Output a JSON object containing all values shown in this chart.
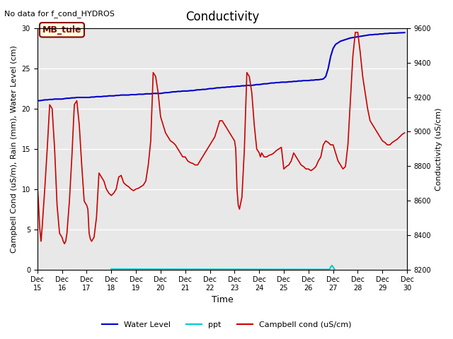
{
  "title": "Conductivity",
  "top_left_text": "No data for f_cond_HYDROS",
  "xlabel": "Time",
  "ylabel_left": "Campbell Cond (uS/m), Rain (mm), Water Level (cm)",
  "ylabel_right": "Conductivity (uS/cm)",
  "site_label": "MB_tule",
  "xlim": [
    15,
    30
  ],
  "ylim_left": [
    0,
    30
  ],
  "ylim_right": [
    8200,
    9600
  ],
  "xtick_labels": [
    "Dec 15",
    "Dec 16",
    "Dec 17",
    "Dec 18",
    "Dec 19",
    "Dec 20",
    "Dec 21",
    "Dec 22",
    "Dec 23",
    "Dec 24",
    "Dec 25",
    "Dec 26",
    "Dec 27",
    "Dec 28",
    "Dec 29",
    "Dec 30"
  ],
  "xtick_positions": [
    15,
    16,
    17,
    18,
    19,
    20,
    21,
    22,
    23,
    24,
    25,
    26,
    27,
    28,
    29,
    30
  ],
  "ytick_left": [
    0,
    5,
    10,
    15,
    20,
    25,
    30
  ],
  "ytick_right": [
    8200,
    8400,
    8600,
    8800,
    9000,
    9200,
    9400,
    9600
  ],
  "bg_color": "#e8e8e8",
  "grid_color": "#ffffff",
  "water_level_color": "#0000cc",
  "ppt_color": "#00cccc",
  "campbell_color": "#cc0000",
  "water_level_x": [
    15.0,
    15.1,
    15.2,
    15.3,
    15.4,
    15.5,
    15.6,
    15.7,
    15.8,
    15.9,
    16.0,
    16.1,
    16.2,
    16.3,
    16.4,
    16.5,
    16.6,
    16.7,
    16.8,
    16.9,
    17.0,
    17.1,
    17.2,
    17.3,
    17.4,
    17.5,
    17.6,
    17.7,
    17.8,
    17.9,
    18.0,
    18.1,
    18.2,
    18.3,
    18.4,
    18.5,
    18.6,
    18.7,
    18.8,
    18.9,
    19.0,
    19.1,
    19.2,
    19.3,
    19.4,
    19.5,
    19.6,
    19.7,
    19.8,
    19.9,
    20.0,
    20.1,
    20.2,
    20.3,
    20.4,
    20.5,
    20.6,
    20.7,
    20.8,
    20.9,
    21.0,
    21.1,
    21.2,
    21.3,
    21.4,
    21.5,
    21.6,
    21.7,
    21.8,
    21.9,
    22.0,
    22.1,
    22.2,
    22.3,
    22.4,
    22.5,
    22.6,
    22.7,
    22.8,
    22.9,
    23.0,
    23.1,
    23.2,
    23.3,
    23.4,
    23.5,
    23.6,
    23.7,
    23.8,
    23.9,
    24.0,
    24.1,
    24.2,
    24.3,
    24.4,
    24.5,
    24.6,
    24.7,
    24.8,
    24.9,
    25.0,
    25.1,
    25.2,
    25.3,
    25.4,
    25.5,
    25.6,
    25.7,
    25.8,
    25.9,
    26.0,
    26.1,
    26.2,
    26.3,
    26.4,
    26.5,
    26.6,
    26.7,
    26.8,
    26.9,
    27.0,
    27.1,
    27.2,
    27.3,
    27.4,
    27.5,
    27.6,
    27.7,
    27.8,
    27.9,
    28.0,
    28.1,
    28.2,
    28.3,
    28.4,
    28.5,
    28.6,
    28.7,
    28.8,
    28.9,
    29.0,
    29.1,
    29.2,
    29.3,
    29.4,
    29.5,
    29.6,
    29.7,
    29.8,
    29.9
  ],
  "water_level_y": [
    21.0,
    21.0,
    21.05,
    21.1,
    21.1,
    21.15,
    21.15,
    21.2,
    21.2,
    21.2,
    21.2,
    21.25,
    21.3,
    21.3,
    21.35,
    21.35,
    21.4,
    21.4,
    21.4,
    21.4,
    21.4,
    21.4,
    21.45,
    21.45,
    21.5,
    21.5,
    21.5,
    21.55,
    21.55,
    21.6,
    21.6,
    21.6,
    21.65,
    21.65,
    21.7,
    21.7,
    21.7,
    21.7,
    21.75,
    21.75,
    21.75,
    21.8,
    21.8,
    21.8,
    21.85,
    21.85,
    21.85,
    21.9,
    21.9,
    21.9,
    21.9,
    21.95,
    22.0,
    22.0,
    22.05,
    22.1,
    22.1,
    22.15,
    22.15,
    22.2,
    22.2,
    22.2,
    22.25,
    22.25,
    22.3,
    22.35,
    22.35,
    22.4,
    22.4,
    22.45,
    22.5,
    22.5,
    22.55,
    22.6,
    22.6,
    22.65,
    22.65,
    22.7,
    22.7,
    22.75,
    22.75,
    22.8,
    22.8,
    22.85,
    22.85,
    22.9,
    22.9,
    22.9,
    22.95,
    23.0,
    23.0,
    23.05,
    23.1,
    23.1,
    23.15,
    23.2,
    23.2,
    23.25,
    23.25,
    23.3,
    23.3,
    23.3,
    23.35,
    23.35,
    23.4,
    23.4,
    23.45,
    23.45,
    23.5,
    23.5,
    23.5,
    23.55,
    23.55,
    23.6,
    23.6,
    23.65,
    23.7,
    24.0,
    25.0,
    26.5,
    27.5,
    28.0,
    28.2,
    28.4,
    28.5,
    28.6,
    28.7,
    28.8,
    28.85,
    28.9,
    28.95,
    29.0,
    29.05,
    29.1,
    29.15,
    29.2,
    29.2,
    29.25,
    29.25,
    29.3,
    29.3,
    29.35,
    29.35,
    29.4,
    29.4,
    29.4,
    29.42,
    29.44,
    29.45,
    29.47
  ],
  "ppt_x": [
    18.0,
    26.85,
    26.9,
    26.95,
    27.0,
    27.05
  ],
  "ppt_y": [
    0.05,
    0.0,
    0.3,
    0.5,
    0.3,
    0.05
  ],
  "campbell_x": [
    15.0,
    15.05,
    15.1,
    15.15,
    15.2,
    15.3,
    15.4,
    15.5,
    15.6,
    15.7,
    15.8,
    15.9,
    16.0,
    16.05,
    16.1,
    16.15,
    16.2,
    16.3,
    16.4,
    16.5,
    16.6,
    16.7,
    16.8,
    16.9,
    17.0,
    17.05,
    17.1,
    17.15,
    17.2,
    17.3,
    17.4,
    17.5,
    17.6,
    17.7,
    17.8,
    17.9,
    18.0,
    18.1,
    18.2,
    18.3,
    18.4,
    18.5,
    18.6,
    18.7,
    18.8,
    18.9,
    19.0,
    19.1,
    19.2,
    19.3,
    19.4,
    19.5,
    19.6,
    19.7,
    19.8,
    19.9,
    20.0,
    20.1,
    20.2,
    20.3,
    20.4,
    20.5,
    20.6,
    20.7,
    20.8,
    20.9,
    21.0,
    21.1,
    21.2,
    21.3,
    21.4,
    21.5,
    21.6,
    21.7,
    21.8,
    21.9,
    22.0,
    22.1,
    22.2,
    22.3,
    22.4,
    22.5,
    22.6,
    22.7,
    22.8,
    22.9,
    23.0,
    23.05,
    23.1,
    23.15,
    23.2,
    23.3,
    23.4,
    23.5,
    23.6,
    23.7,
    23.8,
    23.9,
    24.0,
    24.05,
    24.1,
    24.2,
    24.3,
    24.4,
    24.5,
    24.6,
    24.7,
    24.8,
    24.9,
    25.0,
    25.1,
    25.2,
    25.3,
    25.4,
    25.5,
    25.6,
    25.7,
    25.8,
    25.9,
    26.0,
    26.1,
    26.2,
    26.3,
    26.4,
    26.5,
    26.6,
    26.7,
    26.8,
    26.9,
    27.0,
    27.05,
    27.1,
    27.15,
    27.2,
    27.3,
    27.4,
    27.5,
    27.6,
    27.7,
    27.8,
    27.9,
    28.0,
    28.1,
    28.2,
    28.3,
    28.4,
    28.5,
    28.6,
    28.7,
    28.8,
    28.9,
    29.0,
    29.1,
    29.2,
    29.3,
    29.4,
    29.5,
    29.6,
    29.7,
    29.8,
    29.9
  ],
  "campbell_y": [
    10.5,
    8.0,
    5.0,
    3.5,
    5.5,
    10.0,
    15.0,
    20.5,
    20.0,
    15.0,
    8.0,
    4.5,
    4.0,
    3.5,
    3.2,
    3.5,
    4.5,
    8.5,
    14.0,
    20.5,
    21.0,
    18.0,
    13.0,
    8.5,
    8.0,
    7.5,
    4.5,
    3.8,
    3.5,
    4.0,
    6.5,
    12.0,
    11.5,
    11.0,
    10.0,
    9.5,
    9.2,
    9.5,
    10.0,
    11.5,
    11.7,
    10.8,
    10.5,
    10.3,
    10.0,
    9.8,
    10.0,
    10.1,
    10.3,
    10.5,
    11.0,
    13.0,
    16.0,
    24.5,
    24.0,
    22.0,
    19.0,
    18.0,
    17.0,
    16.5,
    16.0,
    15.8,
    15.5,
    15.0,
    14.5,
    14.0,
    14.0,
    13.5,
    13.3,
    13.2,
    13.0,
    13.0,
    13.5,
    14.0,
    14.5,
    15.0,
    15.5,
    16.0,
    16.5,
    17.5,
    18.5,
    18.5,
    18.0,
    17.5,
    17.0,
    16.5,
    16.0,
    15.0,
    10.0,
    8.0,
    7.5,
    9.0,
    15.0,
    24.5,
    24.0,
    22.0,
    18.0,
    15.0,
    14.5,
    14.0,
    14.5,
    14.0,
    14.0,
    14.2,
    14.3,
    14.5,
    14.8,
    15.0,
    15.2,
    12.5,
    12.8,
    13.0,
    13.5,
    14.5,
    14.0,
    13.5,
    13.0,
    12.8,
    12.5,
    12.5,
    12.3,
    12.5,
    12.8,
    13.5,
    14.0,
    15.5,
    16.0,
    15.8,
    15.5,
    15.5,
    15.0,
    14.5,
    14.0,
    13.5,
    13.0,
    12.5,
    12.8,
    15.5,
    21.0,
    26.5,
    29.5,
    29.5,
    27.0,
    24.0,
    22.0,
    20.0,
    18.5,
    18.0,
    17.5,
    17.0,
    16.5,
    16.0,
    15.8,
    15.5,
    15.5,
    15.8,
    16.0,
    16.2,
    16.5,
    16.8,
    17.0
  ]
}
